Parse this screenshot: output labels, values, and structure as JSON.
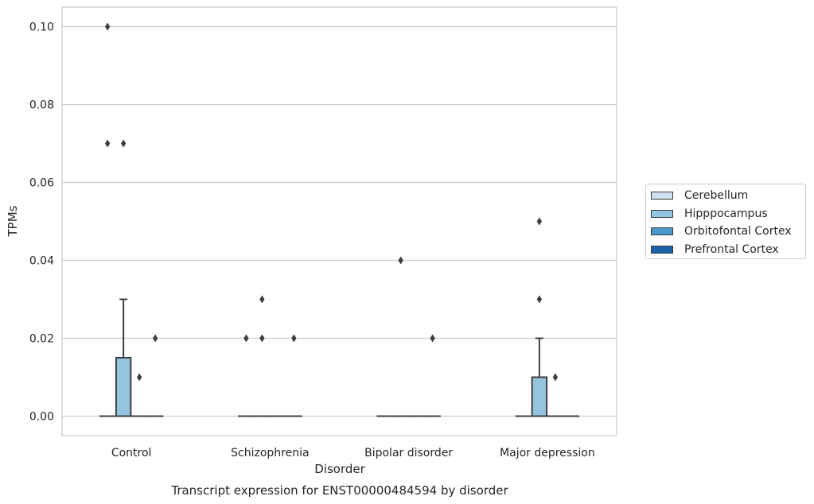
{
  "chart_data": {
    "type": "box",
    "title": "Transcript expression for ENST00000484594 by disorder",
    "xlabel": "Disorder",
    "ylabel": "TPMs",
    "ylim": [
      -0.005,
      0.105
    ],
    "yticks": [
      "0.00",
      "0.02",
      "0.04",
      "0.06",
      "0.08",
      "0.10"
    ],
    "categories": [
      "Control",
      "Schizophrenia",
      "Bipolar disorder",
      "Major depression"
    ],
    "grid": "horizontal",
    "legend_position": "right",
    "series": [
      {
        "name": "Cerebellum",
        "color": "#d0e1f2",
        "boxes": [
          {
            "q1": 0,
            "median": 0,
            "q3": 0,
            "whisker_low": 0,
            "whisker_high": 0,
            "outliers": [
              0.1,
              0.07
            ]
          },
          {
            "q1": 0,
            "median": 0,
            "q3": 0,
            "whisker_low": 0,
            "whisker_high": 0,
            "outliers": [
              0.02
            ]
          },
          {
            "q1": 0,
            "median": 0,
            "q3": 0,
            "whisker_low": 0,
            "whisker_high": 0,
            "outliers": []
          },
          {
            "q1": 0,
            "median": 0,
            "q3": 0,
            "whisker_low": 0,
            "whisker_high": 0,
            "outliers": []
          }
        ]
      },
      {
        "name": "Hipppocampus",
        "color": "#94c4df",
        "boxes": [
          {
            "q1": 0,
            "median": 0,
            "q3": 0.015,
            "whisker_low": 0,
            "whisker_high": 0.03,
            "outliers": [
              0.07
            ]
          },
          {
            "q1": 0,
            "median": 0,
            "q3": 0,
            "whisker_low": 0,
            "whisker_high": 0,
            "outliers": [
              0.03,
              0.02
            ]
          },
          {
            "q1": 0,
            "median": 0,
            "q3": 0,
            "whisker_low": 0,
            "whisker_high": 0,
            "outliers": [
              0.04
            ]
          },
          {
            "q1": 0,
            "median": 0,
            "q3": 0.01,
            "whisker_low": 0,
            "whisker_high": 0.02,
            "outliers": [
              0.05,
              0.03
            ]
          }
        ]
      },
      {
        "name": "Orbitofontal Cortex",
        "color": "#4a98c9",
        "boxes": [
          {
            "q1": 0,
            "median": 0,
            "q3": 0,
            "whisker_low": 0,
            "whisker_high": 0,
            "outliers": [
              0.01
            ]
          },
          {
            "q1": 0,
            "median": 0,
            "q3": 0,
            "whisker_low": 0,
            "whisker_high": 0,
            "outliers": []
          },
          {
            "q1": 0,
            "median": 0,
            "q3": 0,
            "whisker_low": 0,
            "whisker_high": 0,
            "outliers": []
          },
          {
            "q1": 0,
            "median": 0,
            "q3": 0,
            "whisker_low": 0,
            "whisker_high": 0,
            "outliers": [
              0.01
            ]
          }
        ]
      },
      {
        "name": "Prefrontal Cortex",
        "color": "#1764ab",
        "boxes": [
          {
            "q1": 0,
            "median": 0,
            "q3": 0,
            "whisker_low": 0,
            "whisker_high": 0,
            "outliers": [
              0.02
            ]
          },
          {
            "q1": 0,
            "median": 0,
            "q3": 0,
            "whisker_low": 0,
            "whisker_high": 0,
            "outliers": [
              0.02
            ]
          },
          {
            "q1": 0,
            "median": 0,
            "q3": 0,
            "whisker_low": 0,
            "whisker_high": 0,
            "outliers": [
              0.02
            ]
          },
          {
            "q1": 0,
            "median": 0,
            "q3": 0,
            "whisker_low": 0,
            "whisker_high": 0,
            "outliers": []
          }
        ]
      }
    ]
  }
}
